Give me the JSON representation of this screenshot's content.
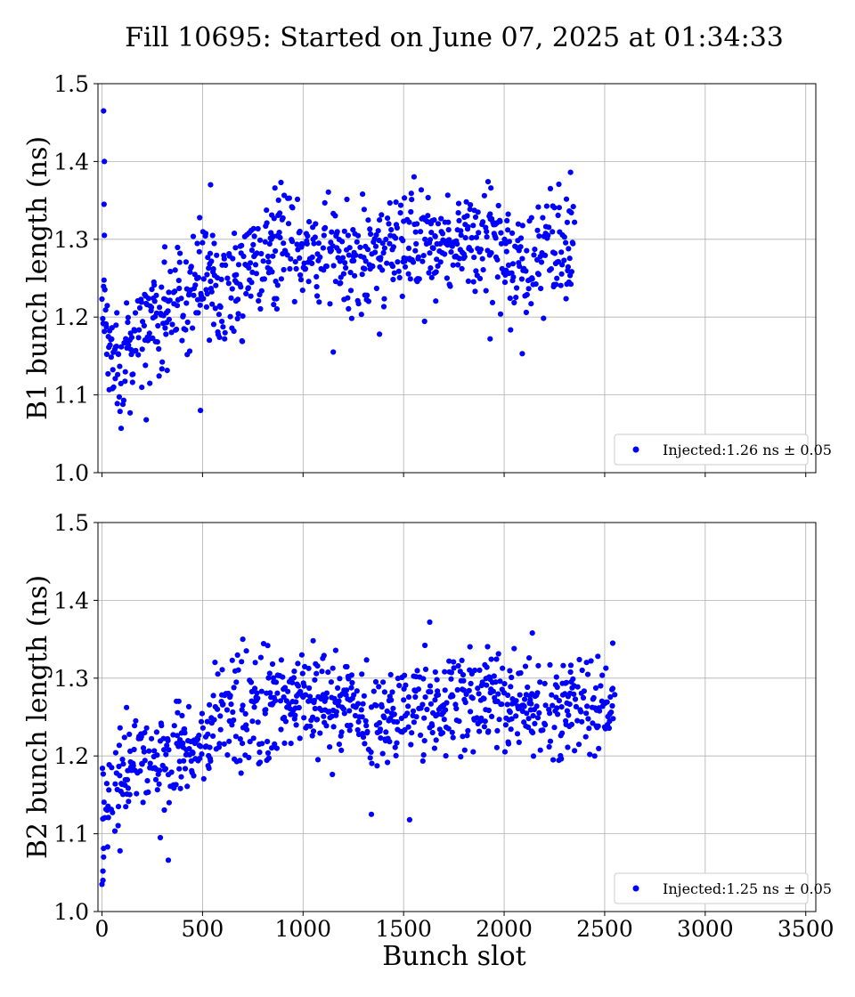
{
  "figure": {
    "title": "Fill 10695: Started on June 07, 2025 at 01:34:33",
    "shared_xlabel": "Bunch slot"
  },
  "chart_data": [
    {
      "type": "scatter",
      "ylabel": "B1 bunch length (ns)",
      "xlabel": "",
      "xlim": [
        -20,
        3550
      ],
      "ylim": [
        1.0,
        1.5
      ],
      "xticks": [
        "0",
        "500",
        "1000",
        "1500",
        "2000",
        "2500",
        "3000",
        "3500"
      ],
      "yticks": [
        "1.0",
        "1.1",
        "1.2",
        "1.3",
        "1.4",
        "1.5"
      ],
      "x_tick_labels_visible": false,
      "grid": true,
      "legend_position": "lower-right",
      "color": "#0000ff",
      "series": [
        {
          "name": "Injected:1.26 ns ± 0.05",
          "x_range": [
            0,
            2350
          ],
          "scatter_spread": 0.035,
          "trend": [
            [
              0,
              1.21
            ],
            [
              50,
              1.15
            ],
            [
              150,
              1.15
            ],
            [
              200,
              1.19
            ],
            [
              300,
              1.2
            ],
            [
              420,
              1.24
            ],
            [
              560,
              1.26
            ],
            [
              580,
              1.23
            ],
            [
              700,
              1.24
            ],
            [
              790,
              1.28
            ],
            [
              900,
              1.3
            ],
            [
              1100,
              1.28
            ],
            [
              1300,
              1.27
            ],
            [
              1500,
              1.29
            ],
            [
              1700,
              1.3
            ],
            [
              1900,
              1.3
            ],
            [
              1980,
              1.29
            ],
            [
              2020,
              1.26
            ],
            [
              2150,
              1.27
            ],
            [
              2250,
              1.29
            ],
            [
              2350,
              1.29
            ]
          ],
          "notable_points": [
            [
              8,
              1.465
            ],
            [
              12,
              1.4
            ],
            [
              10,
              1.345
            ],
            [
              12,
              1.305
            ],
            [
              95,
              1.057
            ],
            [
              220,
              1.068
            ],
            [
              490,
              1.08
            ],
            [
              1150,
              1.155
            ],
            [
              1380,
              1.178
            ],
            [
              1930,
              1.172
            ],
            [
              2090,
              1.153
            ],
            [
              2330,
              1.386
            ],
            [
              1920,
              1.374
            ],
            [
              890,
              1.373
            ],
            [
              540,
              1.37
            ]
          ]
        }
      ]
    },
    {
      "type": "scatter",
      "ylabel": "B2 bunch length (ns)",
      "xlabel": "Bunch slot",
      "xlim": [
        -20,
        3550
      ],
      "ylim": [
        1.0,
        1.5
      ],
      "xticks": [
        "0",
        "500",
        "1000",
        "1500",
        "2000",
        "2500",
        "3000",
        "3500"
      ],
      "yticks": [
        "1.0",
        "1.1",
        "1.2",
        "1.3",
        "1.4",
        "1.5"
      ],
      "x_tick_labels_visible": true,
      "grid": true,
      "legend_position": "lower-right",
      "color": "#0000ff",
      "series": [
        {
          "name": "Injected:1.25 ns ± 0.05",
          "x_range": [
            0,
            2550
          ],
          "scatter_spread": 0.032,
          "trend": [
            [
              0,
              1.12
            ],
            [
              100,
              1.18
            ],
            [
              200,
              1.19
            ],
            [
              300,
              1.2
            ],
            [
              500,
              1.22
            ],
            [
              600,
              1.25
            ],
            [
              700,
              1.26
            ],
            [
              900,
              1.26
            ],
            [
              1000,
              1.27
            ],
            [
              1200,
              1.26
            ],
            [
              1400,
              1.25
            ],
            [
              1500,
              1.26
            ],
            [
              1700,
              1.265
            ],
            [
              1900,
              1.27
            ],
            [
              2100,
              1.27
            ],
            [
              2200,
              1.255
            ],
            [
              2350,
              1.26
            ],
            [
              2550,
              1.27
            ]
          ],
          "notable_points": [
            [
              0,
              1.035
            ],
            [
              5,
              1.04
            ],
            [
              5,
              1.052
            ],
            [
              8,
              1.07
            ],
            [
              90,
              1.078
            ],
            [
              330,
              1.066
            ],
            [
              290,
              1.095
            ],
            [
              1530,
              1.118
            ],
            [
              1340,
              1.125
            ],
            [
              1630,
              1.372
            ],
            [
              2140,
              1.358
            ],
            [
              700,
              1.35
            ],
            [
              2540,
              1.345
            ],
            [
              1050,
              1.348
            ]
          ]
        }
      ]
    }
  ]
}
